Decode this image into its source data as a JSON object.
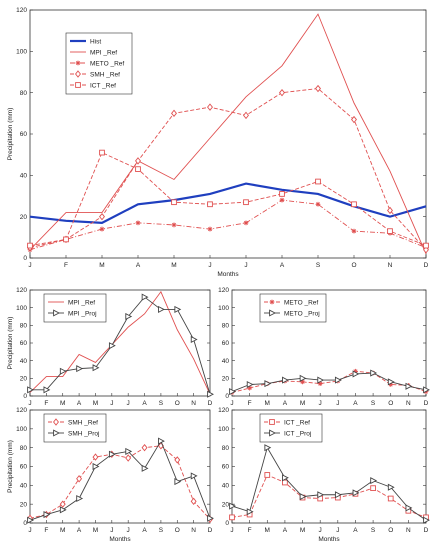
{
  "chart_data": [
    {
      "id": "top",
      "type": "line",
      "categories": [
        "J",
        "F",
        "M",
        "A",
        "M",
        "J",
        "J",
        "A",
        "S",
        "O",
        "N",
        "D"
      ],
      "xlabel": "Months",
      "ylabel": "Precipitation (mm)",
      "ylim": [
        0,
        120
      ],
      "yticks": [
        0,
        20,
        40,
        60,
        80,
        100,
        120
      ],
      "legend_position": "top-left",
      "series": [
        {
          "name": "Hist",
          "color": "#1f3fbf",
          "style": "solid-thick",
          "marker": "none",
          "values": [
            20,
            18,
            17,
            26,
            28,
            31,
            36,
            33,
            31,
            25,
            20,
            25
          ]
        },
        {
          "name": "MPI _Ref",
          "color": "#e05050",
          "style": "solid",
          "marker": "none",
          "values": [
            4,
            22,
            22,
            47,
            38,
            58,
            78,
            93,
            118,
            75,
            42,
            2
          ]
        },
        {
          "name": "METO _Ref",
          "color": "#e05050",
          "style": "dashdot",
          "marker": "star",
          "values": [
            4,
            9,
            14,
            17,
            16,
            14,
            17,
            28,
            26,
            13,
            12,
            5
          ]
        },
        {
          "name": "SMH _Ref",
          "color": "#e05050",
          "style": "dashed",
          "marker": "diamond",
          "values": [
            5,
            9,
            20,
            47,
            70,
            73,
            69,
            80,
            82,
            67,
            23,
            4
          ]
        },
        {
          "name": "ICT _Ref",
          "color": "#e05050",
          "style": "dashed",
          "marker": "square",
          "values": [
            6,
            9,
            51,
            43,
            27,
            26,
            27,
            31,
            37,
            26,
            13,
            6
          ]
        }
      ]
    },
    {
      "id": "mpi",
      "type": "line",
      "categories": [
        "J",
        "F",
        "M",
        "A",
        "M",
        "J",
        "J",
        "A",
        "S",
        "O",
        "N",
        "D"
      ],
      "xlabel": "",
      "ylabel": "Precipitation (mm)",
      "ylim": [
        0,
        120
      ],
      "yticks": [
        0,
        20,
        40,
        60,
        80,
        100,
        120
      ],
      "legend_position": "top-left",
      "series": [
        {
          "name": "MPI _Ref",
          "color": "#e05050",
          "style": "solid",
          "marker": "none",
          "values": [
            4,
            22,
            22,
            47,
            38,
            58,
            78,
            93,
            118,
            75,
            42,
            2
          ]
        },
        {
          "name": "MPI _Proj",
          "color": "#444444",
          "style": "solid",
          "marker": "triangle",
          "values": [
            7,
            7,
            28,
            31,
            32,
            57,
            90,
            112,
            98,
            98,
            64,
            2
          ]
        }
      ]
    },
    {
      "id": "meto",
      "type": "line",
      "categories": [
        "J",
        "F",
        "M",
        "A",
        "M",
        "J",
        "J",
        "A",
        "S",
        "O",
        "N",
        "D"
      ],
      "xlabel": "",
      "ylabel": "",
      "ylim": [
        0,
        120
      ],
      "yticks": [
        0,
        20,
        40,
        60,
        80,
        100,
        120
      ],
      "legend_position": "top-left",
      "series": [
        {
          "name": "METO _Ref",
          "color": "#e05050",
          "style": "dashed",
          "marker": "star",
          "values": [
            4,
            9,
            14,
            17,
            16,
            14,
            17,
            28,
            26,
            13,
            12,
            5
          ]
        },
        {
          "name": "METO _Proj",
          "color": "#444444",
          "style": "solid",
          "marker": "triangle",
          "values": [
            5,
            13,
            14,
            18,
            20,
            18,
            18,
            25,
            26,
            16,
            11,
            7
          ]
        }
      ]
    },
    {
      "id": "smh",
      "type": "line",
      "categories": [
        "J",
        "F",
        "M",
        "A",
        "M",
        "J",
        "J",
        "A",
        "S",
        "O",
        "N",
        "D"
      ],
      "xlabel": "Months",
      "ylabel": "Precipitation (mm)",
      "ylim": [
        0,
        120
      ],
      "yticks": [
        0,
        20,
        40,
        60,
        80,
        100,
        120
      ],
      "legend_position": "top-left",
      "series": [
        {
          "name": "SMH _Ref",
          "color": "#e05050",
          "style": "dashed",
          "marker": "diamond",
          "values": [
            5,
            9,
            20,
            47,
            70,
            73,
            69,
            80,
            82,
            67,
            23,
            4
          ]
        },
        {
          "name": "SMH _Proj",
          "color": "#444444",
          "style": "solid",
          "marker": "triangle",
          "values": [
            3,
            9,
            14,
            26,
            60,
            73,
            76,
            58,
            87,
            44,
            50,
            5
          ]
        }
      ]
    },
    {
      "id": "ict",
      "type": "line",
      "categories": [
        "J",
        "F",
        "M",
        "A",
        "M",
        "J",
        "J",
        "A",
        "S",
        "O",
        "N",
        "D"
      ],
      "xlabel": "Months",
      "ylabel": "",
      "ylim": [
        0,
        120
      ],
      "yticks": [
        0,
        20,
        40,
        60,
        80,
        100,
        120
      ],
      "legend_position": "top-left",
      "series": [
        {
          "name": "ICT _Ref",
          "color": "#e05050",
          "style": "dashed",
          "marker": "square",
          "values": [
            6,
            9,
            51,
            43,
            27,
            26,
            27,
            31,
            37,
            26,
            13,
            6
          ]
        },
        {
          "name": "ICT _Proj",
          "color": "#444444",
          "style": "solid",
          "marker": "triangle",
          "values": [
            18,
            12,
            80,
            48,
            28,
            30,
            30,
            32,
            45,
            38,
            16,
            3
          ]
        }
      ]
    }
  ]
}
